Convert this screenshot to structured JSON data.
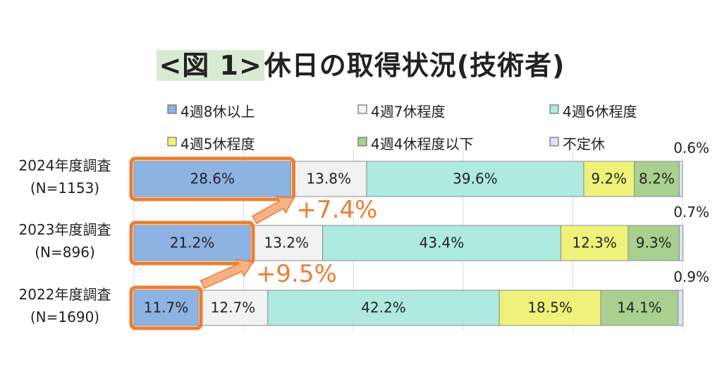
{
  "title": {
    "figure_label": "<図 1>",
    "text": "休日の取得状況(技術者)"
  },
  "chart_data": {
    "type": "bar",
    "orientation": "horizontal",
    "stacked": "percent",
    "title": "<図 1>休日の取得状況(技術者)",
    "categories": [
      {
        "name": "2024年度調査",
        "n": "(N=1153)"
      },
      {
        "name": "2023年度調査",
        "n": "(N=896)"
      },
      {
        "name": "2022年度調査",
        "n": "(N=1690)"
      }
    ],
    "series": [
      {
        "name": "4週8休以上",
        "color": "#8db3e2",
        "values": [
          28.6,
          21.2,
          11.7
        ],
        "labels": [
          "28.6%",
          "21.2%",
          "11.7%"
        ]
      },
      {
        "name": "4週7休程度",
        "color": "#f2f2f2",
        "values": [
          13.8,
          13.2,
          12.7
        ],
        "labels": [
          "13.8%",
          "13.2%",
          "12.7%"
        ]
      },
      {
        "name": "4週6休程度",
        "color": "#aeeadf",
        "values": [
          39.6,
          43.4,
          42.2
        ],
        "labels": [
          "39.6%",
          "43.4%",
          "42.2%"
        ]
      },
      {
        "name": "4週5休程度",
        "color": "#eef27a",
        "values": [
          9.2,
          12.3,
          18.5
        ],
        "labels": [
          "9.2%",
          "12.3%",
          "18.5%"
        ]
      },
      {
        "name": "4週4休程度以下",
        "color": "#a9d08e",
        "values": [
          8.2,
          9.3,
          14.1
        ],
        "labels": [
          "8.2%",
          "9.3%",
          "14.1%"
        ]
      },
      {
        "name": "不定休",
        "color": "#dbe4f7",
        "values": [
          0.6,
          0.7,
          0.9
        ],
        "labels": [
          "0.6%",
          "0.7%",
          "0.9%"
        ]
      }
    ],
    "xlim": [
      0,
      100
    ],
    "grid": "vertical",
    "legend_position": "top",
    "highlight_color": "#ed7d31",
    "annotations": [
      {
        "text": "+7.4%",
        "from_category": "2023年度調査",
        "to_category": "2024年度調査"
      },
      {
        "text": "+9.5%",
        "from_category": "2022年度調査",
        "to_category": "2023年度調査"
      }
    ]
  }
}
